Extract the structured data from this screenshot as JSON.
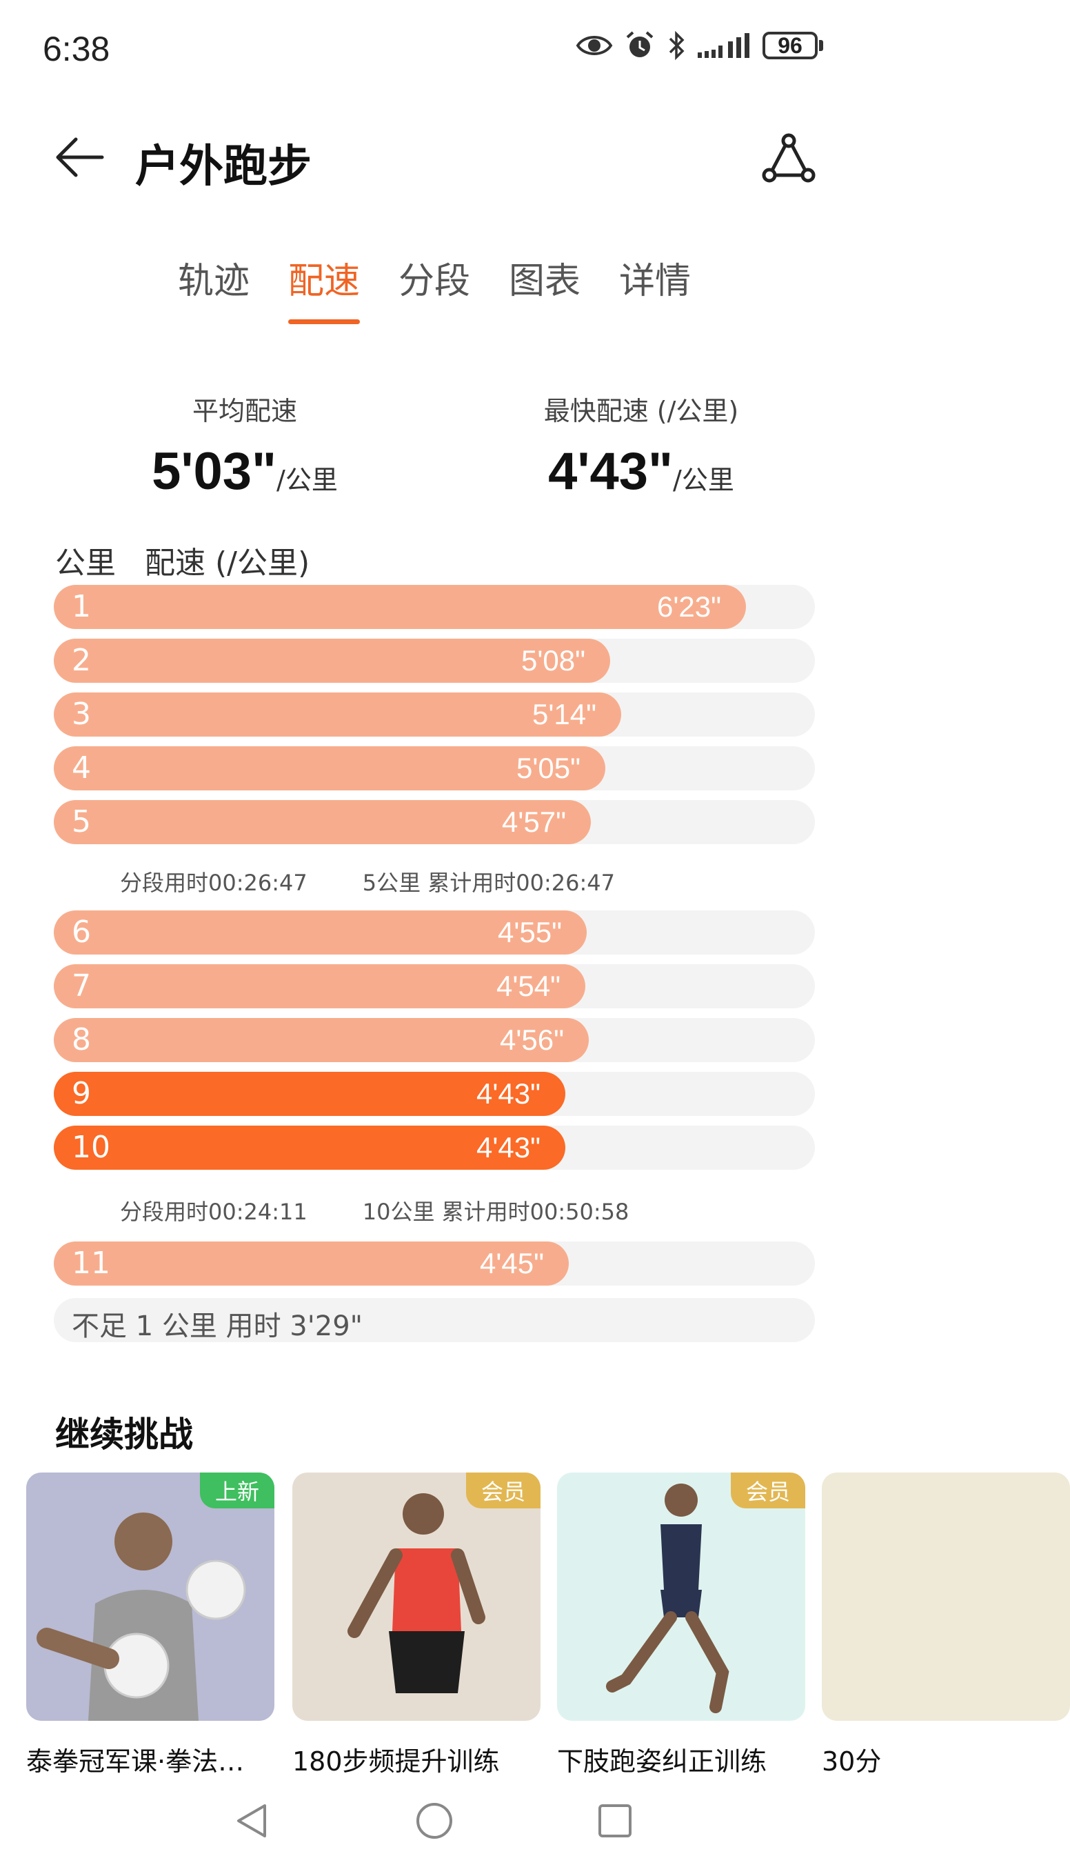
{
  "status_bar": {
    "time": "6:38",
    "battery": "96",
    "icons": [
      "eye-icon",
      "alarm-icon",
      "bluetooth-icon",
      "signal-icon"
    ]
  },
  "header": {
    "title": "户外跑步",
    "back_icon": "arrow-left-icon",
    "share_icon": "route-share-icon"
  },
  "tabs": [
    {
      "label": "轨迹",
      "active": false
    },
    {
      "label": "配速",
      "active": true
    },
    {
      "label": "分段",
      "active": false
    },
    {
      "label": "图表",
      "active": false
    },
    {
      "label": "详情",
      "active": false
    }
  ],
  "summary": {
    "avg_label": "平均配速",
    "avg_value": "5'03\"",
    "avg_unit": "/公里",
    "fast_label": "最快配速 (/公里)",
    "fast_value": "4'43\"",
    "fast_unit": "/公里"
  },
  "splits_header": {
    "km_label": "公里",
    "pace_label": "配速 (/公里)"
  },
  "splits": [
    {
      "km": "1",
      "pace": "6'23\"",
      "seconds": 383,
      "fastest": false
    },
    {
      "km": "2",
      "pace": "5'08\"",
      "seconds": 308,
      "fastest": false
    },
    {
      "km": "3",
      "pace": "5'14\"",
      "seconds": 314,
      "fastest": false
    },
    {
      "km": "4",
      "pace": "5'05\"",
      "seconds": 305,
      "fastest": false
    },
    {
      "km": "5",
      "pace": "4'57\"",
      "seconds": 297,
      "fastest": false
    },
    {
      "km": "6",
      "pace": "4'55\"",
      "seconds": 295,
      "fastest": false
    },
    {
      "km": "7",
      "pace": "4'54\"",
      "seconds": 294,
      "fastest": false
    },
    {
      "km": "8",
      "pace": "4'56\"",
      "seconds": 296,
      "fastest": false
    },
    {
      "km": "9",
      "pace": "4'43\"",
      "seconds": 283,
      "fastest": true
    },
    {
      "km": "10",
      "pace": "4'43\"",
      "seconds": 283,
      "fastest": true
    },
    {
      "km": "11",
      "pace": "4'45\"",
      "seconds": 285,
      "fastest": false
    }
  ],
  "subtotals": [
    {
      "segment": "分段用时00:26:47",
      "cumulative": "5公里 累计用时00:26:47"
    },
    {
      "segment": "分段用时00:24:11",
      "cumulative": "10公里 累计用时00:50:58"
    }
  ],
  "remainder": "不足 1 公里 用时 3'29\"",
  "colors": {
    "accent": "#f06424",
    "bar_normal": "#f7ad8d",
    "bar_fastest": "#fb6a26",
    "bar_track": "#f3f3f3"
  },
  "challenge": {
    "title": "继续挑战",
    "cards": [
      {
        "title": "泰拳冠军课·拳法…",
        "badge": "上新",
        "badge_type": "new",
        "bg": "#b9bad3"
      },
      {
        "title": "180步频提升训练",
        "badge": "会员",
        "badge_type": "vip",
        "bg": "#e6ddd2"
      },
      {
        "title": "下肢跑姿纠正训练",
        "badge": "会员",
        "badge_type": "vip",
        "bg": "#def3ef"
      },
      {
        "title": "30分",
        "badge": "",
        "badge_type": "",
        "bg": "#efe9d8"
      }
    ]
  },
  "nav": [
    "back-triangle-icon",
    "home-circle-icon",
    "recents-square-icon"
  ]
}
